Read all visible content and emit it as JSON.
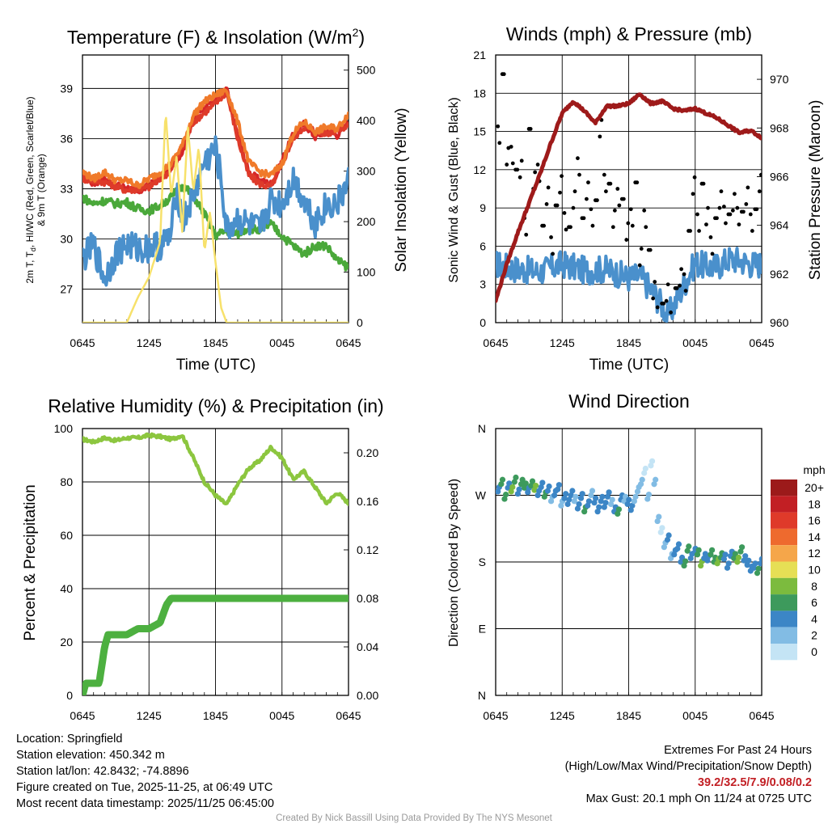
{
  "panels": {
    "temperature": {
      "title": "Temperature (F) & Insolation (W/m",
      "title_sup": "2",
      "title_close": ")",
      "ylabel_left_line1": "2m T, T",
      "ylabel_left_sub": "d",
      "ylabel_left_line1_rest": ", HI/WC (Red, Green, Scarlet/Blue)",
      "ylabel_left_line2": "& 9m T (Orange)",
      "ylabel_right": "Solar Insolation (Yellow)",
      "xlabel": "Time (UTC)"
    },
    "winds": {
      "title": "Winds (mph) & Pressure (mb)",
      "ylabel_left": "Sonic Wind & Gust (Blue, Black)",
      "ylabel_right": "Station Pressure (Maroon)",
      "xlabel": "Time (UTC)"
    },
    "humidity": {
      "title": "Relative Humidity (%) & Precipitation (in)",
      "ylabel_left": "Percent & Precipitation"
    },
    "direction": {
      "title": "Wind Direction",
      "ylabel_left": "Direction (Colored By Speed)",
      "legend_unit": "mph"
    }
  },
  "chart_data": [
    {
      "type": "line",
      "title": "Temperature (F) & Insolation (W/m2)",
      "xlabel": "Time (UTC)",
      "x_ticks": [
        "0645",
        "1245",
        "1845",
        "0045",
        "0645"
      ],
      "x_range_hours": [
        0,
        24
      ],
      "ylim": [
        25,
        41
      ],
      "y_ticks": [
        27,
        30,
        33,
        36,
        39
      ],
      "y2lim": [
        0,
        530
      ],
      "y2_ticks": [
        0,
        100,
        200,
        300,
        400,
        500
      ],
      "series": [
        {
          "name": "2m T",
          "color": "#d62728",
          "axis": "left",
          "x": [
            0,
            1,
            2,
            3,
            4,
            5,
            6,
            7,
            8,
            9,
            10,
            11,
            12,
            13,
            13.5,
            14,
            15,
            16,
            17,
            17.5,
            18,
            19,
            20,
            21,
            22,
            23,
            24
          ],
          "values": [
            33.8,
            33.3,
            33.6,
            33.2,
            33.1,
            32.8,
            33.2,
            33.6,
            34.3,
            35.2,
            37.2,
            38.0,
            38.3,
            39.0,
            37.5,
            36.2,
            34.0,
            33.5,
            33.3,
            33.8,
            34.7,
            36.2,
            36.9,
            36.1,
            36.5,
            36.2,
            37.0
          ]
        },
        {
          "name": "HI/WC",
          "color": "#de3a2a",
          "axis": "left",
          "x": [
            0,
            2,
            4,
            6,
            8,
            10,
            12,
            13,
            14,
            15,
            16,
            17,
            18,
            19,
            20,
            22,
            24
          ],
          "values": [
            33.6,
            33.4,
            32.9,
            33.1,
            34.1,
            37.0,
            38.1,
            38.8,
            36.0,
            33.8,
            33.3,
            33.1,
            34.5,
            36.0,
            36.7,
            36.3,
            36.8
          ]
        },
        {
          "name": "9m T",
          "color": "#f07a2a",
          "axis": "left",
          "x": [
            0,
            1,
            2,
            3,
            4,
            5,
            6,
            7,
            8,
            9,
            10,
            11,
            12,
            13,
            14,
            15,
            16,
            17,
            18,
            19,
            20,
            21,
            22,
            23,
            24
          ],
          "values": [
            34.0,
            33.6,
            34.0,
            33.5,
            33.5,
            33.2,
            33.6,
            34.0,
            34.5,
            35.6,
            37.4,
            38.2,
            38.6,
            38.9,
            37.0,
            34.6,
            34.0,
            33.8,
            34.5,
            36.3,
            37.0,
            36.4,
            36.7,
            36.6,
            37.5
          ]
        },
        {
          "name": "Td",
          "color": "#4aa83a",
          "axis": "left",
          "x": [
            0,
            1,
            2,
            3,
            4,
            5,
            6,
            7,
            8,
            9,
            10,
            11,
            12,
            13,
            14,
            15,
            16,
            17,
            18,
            19,
            20,
            21,
            22,
            23,
            24
          ],
          "values": [
            32.5,
            32.1,
            32.3,
            32.1,
            32.2,
            31.8,
            31.7,
            32.0,
            32.5,
            33.2,
            32.6,
            31.5,
            30.2,
            30.5,
            30.3,
            30.7,
            30.5,
            30.9,
            30.2,
            29.6,
            29.1,
            29.6,
            29.6,
            28.7,
            28.3
          ]
        },
        {
          "name": "Scarlet/Blue",
          "color": "#4a90cc",
          "axis": "left",
          "x": [
            0,
            1,
            2,
            3,
            4,
            5,
            6,
            7,
            8,
            8.5,
            9,
            10,
            11,
            12,
            12.5,
            13,
            14,
            15,
            16,
            17,
            18,
            19,
            20,
            21,
            22,
            23,
            24
          ],
          "values": [
            28.8,
            29.6,
            27.6,
            29.1,
            29.7,
            29.4,
            29.5,
            29.6,
            30.2,
            33.2,
            31.0,
            32.5,
            34.6,
            35.3,
            33.6,
            30.5,
            31.2,
            30.8,
            30.5,
            32.3,
            32.1,
            33.6,
            32.4,
            31.0,
            32.0,
            32.1,
            33.4
          ]
        },
        {
          "name": "Solar Insolation",
          "color": "#f7e16b",
          "axis": "right",
          "x": [
            0,
            4,
            5,
            6,
            7,
            7.5,
            8,
            8.5,
            9,
            9.5,
            10,
            10.5,
            11,
            11.5,
            12,
            12.5,
            13,
            13.5,
            14,
            24
          ],
          "values": [
            0,
            0,
            50,
            90,
            160,
            420,
            250,
            330,
            180,
            390,
            260,
            350,
            140,
            220,
            120,
            30,
            0,
            0,
            0,
            0
          ]
        }
      ]
    },
    {
      "type": "line",
      "title": "Winds (mph) & Pressure (mb)",
      "xlabel": "Time (UTC)",
      "x_ticks": [
        "0645",
        "1245",
        "1845",
        "0045",
        "0645"
      ],
      "x_range_hours": [
        0,
        24
      ],
      "ylim": [
        0,
        21
      ],
      "y_ticks": [
        0,
        3,
        6,
        9,
        12,
        15,
        18,
        21
      ],
      "y2lim": [
        960,
        971
      ],
      "y2_ticks": [
        960,
        962,
        964,
        966,
        968,
        970
      ],
      "series": [
        {
          "name": "Sonic Wind",
          "color": "#4a90cc",
          "axis": "left",
          "x": [
            0,
            2,
            4,
            6,
            8,
            10,
            12,
            13,
            14,
            15,
            15.5,
            16,
            17,
            18,
            19,
            20,
            21,
            22,
            23,
            24
          ],
          "values": [
            4.6,
            4.2,
            4.0,
            4.6,
            4.1,
            4.2,
            3.5,
            3.7,
            2.6,
            1.4,
            0.5,
            1.2,
            3.0,
            4.7,
            4.4,
            4.4,
            5.0,
            4.9,
            4.6,
            4.6
          ]
        },
        {
          "name": "Gust",
          "color": "#000000",
          "axis": "left",
          "style": "points",
          "x": [
            0.2,
            0.6,
            1,
            1.4,
            1.8,
            2.2,
            2.6,
            3.0,
            3.4,
            3.8,
            4.2,
            4.6,
            5.0,
            5.4,
            5.8,
            6.2,
            6.6,
            7.0,
            7.4,
            7.8,
            8.2,
            8.6,
            9.0,
            9.4,
            9.8,
            10.2,
            10.6,
            11.0,
            11.4,
            11.8,
            12.2,
            12.6,
            13.0,
            13.4,
            13.8,
            14.2,
            14.6,
            15.0,
            15.4,
            15.8,
            16.2,
            16.6,
            17.0,
            17.4,
            17.8,
            18.2,
            18.6,
            19.0,
            19.4,
            19.8,
            20.2,
            20.6,
            21.0,
            21.4,
            21.8,
            22.2,
            22.6,
            23.0,
            23.4,
            23.8
          ],
          "values": [
            15.4,
            19.5,
            12.4,
            13.8,
            12.0,
            11.4,
            8.2,
            15.2,
            10.5,
            12.4,
            7.6,
            9.3,
            6.7,
            9.2,
            10.2,
            8.6,
            7.5,
            9.0,
            12.9,
            8.2,
            9.7,
            8.9,
            9.6,
            14.6,
            11.6,
            10.9,
            7.5,
            10.5,
            9.7,
            6.5,
            8.9,
            11.0,
            4.5,
            8.8,
            5.7,
            1.9,
            1.2,
            1.5,
            1.7,
            0.8,
            2.7,
            2.9,
            3.8,
            7.2,
            10.1,
            8.5,
            10.9,
            7.7,
            6.7,
            8.2,
            9.0,
            9.1,
            8.5,
            8.8,
            9.0,
            8.7,
            9.3,
            8.5,
            8.9,
            10.3
          ]
        },
        {
          "name": "Station Pressure",
          "color": "#9e1a1a",
          "axis": "right",
          "x": [
            0,
            1,
            2,
            3,
            4,
            5,
            6,
            7,
            8,
            9,
            10,
            11,
            12,
            13,
            14,
            15,
            16,
            17,
            18,
            19,
            20,
            21,
            22,
            23,
            24
          ],
          "values": [
            960.9,
            962.4,
            963.7,
            964.9,
            966.1,
            967.4,
            968.6,
            969.1,
            968.7,
            968.2,
            968.9,
            968.9,
            969.0,
            969.4,
            969.0,
            969.1,
            968.8,
            968.7,
            968.8,
            968.6,
            968.4,
            968.1,
            967.8,
            967.9,
            967.6
          ]
        }
      ]
    },
    {
      "type": "line",
      "title": "Relative Humidity (%) & Precipitation (in)",
      "x_ticks": [
        "0645",
        "1245",
        "1845",
        "0045",
        "0645"
      ],
      "x_range_hours": [
        0,
        24
      ],
      "ylim": [
        0,
        100
      ],
      "y_ticks": [
        0,
        20,
        40,
        60,
        80,
        100
      ],
      "y2lim": [
        0,
        0.22
      ],
      "y2_ticks": [
        "0.00",
        "0.04",
        "0.08",
        "0.12",
        "0.16",
        "0.20"
      ],
      "series": [
        {
          "name": "Relative Humidity",
          "color": "#8cc63f",
          "axis": "left",
          "x": [
            0,
            1,
            2,
            3,
            4,
            5,
            6,
            7,
            8,
            9,
            10,
            11,
            12,
            13,
            14,
            15,
            16,
            17,
            18,
            19,
            20,
            21,
            22,
            23,
            24
          ],
          "values": [
            96,
            95,
            96.5,
            95.5,
            96.5,
            96.5,
            97.5,
            97,
            96,
            97.5,
            89,
            80,
            75,
            71.5,
            79,
            85,
            88,
            93,
            89,
            81,
            84,
            78,
            72,
            76,
            72
          ]
        },
        {
          "name": "Precipitation",
          "color": "#4db040",
          "axis": "right",
          "x": [
            0,
            0.3,
            0.5,
            1.5,
            2,
            2.3,
            3,
            4,
            5,
            6,
            7,
            7.6,
            8,
            9,
            24
          ],
          "values": [
            0,
            0.01,
            0.01,
            0.01,
            0.04,
            0.05,
            0.05,
            0.05,
            0.055,
            0.055,
            0.06,
            0.075,
            0.08,
            0.08,
            0.08
          ]
        }
      ]
    },
    {
      "type": "scatter",
      "title": "Wind Direction",
      "ylabel": "Direction (Colored By Speed)",
      "x_ticks": [
        "0645",
        "1245",
        "1845",
        "0045",
        "0645"
      ],
      "x_range_hours": [
        0,
        24
      ],
      "ylim": [
        0,
        360
      ],
      "y_ticks": [
        "N",
        "E",
        "S",
        "W",
        "N"
      ],
      "y_tick_values": [
        0,
        90,
        180,
        270,
        360
      ],
      "color_scale": {
        "unit": "mph",
        "labels": [
          "0",
          "2",
          "4",
          "6",
          "8",
          "10",
          "12",
          "14",
          "16",
          "18",
          "20+"
        ],
        "colors": [
          "#c4e4f5",
          "#82bce4",
          "#3c86c6",
          "#3d9a5c",
          "#7cbb3e",
          "#e6df55",
          "#f5a64a",
          "#ee6a2e",
          "#df3a2a",
          "#c21f24",
          "#9c1a1a"
        ]
      },
      "x": [
        0.2,
        0.5,
        0.8,
        1.1,
        1.4,
        1.7,
        2.0,
        2.3,
        2.6,
        2.9,
        3.2,
        3.5,
        3.8,
        4.1,
        4.4,
        4.7,
        5.0,
        5.3,
        5.6,
        5.9,
        6.2,
        6.5,
        6.8,
        7.1,
        7.4,
        7.7,
        8.0,
        8.3,
        8.6,
        8.9,
        9.2,
        9.5,
        9.8,
        10.1,
        10.4,
        10.7,
        11.0,
        11.3,
        11.6,
        11.9,
        12.2,
        12.5,
        12.8,
        13.1,
        13.4,
        13.7,
        14.0,
        14.3,
        14.6,
        14.9,
        15.2,
        15.5,
        15.8,
        16.1,
        16.4,
        16.7,
        17.0,
        17.3,
        17.6,
        17.9,
        18.2,
        18.5,
        18.8,
        19.1,
        19.4,
        19.7,
        20.0,
        20.3,
        20.6,
        20.9,
        21.2,
        21.5,
        21.8,
        22.1,
        22.4,
        22.7,
        23.0,
        23.3,
        23.6,
        23.9
      ],
      "y": [
        275,
        285,
        265,
        280,
        275,
        288,
        272,
        285,
        280,
        274,
        283,
        277,
        270,
        281,
        268,
        276,
        262,
        270,
        278,
        256,
        266,
        258,
        270,
        262,
        252,
        266,
        248,
        256,
        270,
        260,
        248,
        262,
        254,
        268,
        258,
        248,
        245,
        264,
        262,
        258,
        250,
        262,
        275,
        285,
        300,
        265,
        310,
        285,
        235,
        220,
        200,
        210,
        185,
        190,
        198,
        180,
        175,
        195,
        185,
        192,
        190,
        175,
        185,
        182,
        190,
        180,
        178,
        186,
        184,
        172,
        188,
        185,
        180,
        194,
        182,
        176,
        168,
        172,
        165,
        178
      ],
      "speed": [
        3,
        5,
        6,
        4,
        7,
        5,
        3,
        6,
        5,
        4,
        6,
        7,
        3,
        4,
        5,
        3,
        2,
        3,
        4,
        2,
        3,
        3,
        4,
        2,
        3,
        4,
        5,
        3,
        2,
        4,
        3,
        4,
        3,
        3,
        2,
        4,
        6,
        3,
        2,
        4,
        3,
        2,
        1,
        1,
        0,
        1,
        0,
        2,
        1,
        0,
        2,
        3,
        1,
        4,
        3,
        3,
        5,
        6,
        4,
        3,
        5,
        7,
        4,
        3,
        5,
        6,
        7,
        5,
        4,
        3,
        3,
        5,
        7,
        6,
        3,
        4,
        3,
        4,
        5,
        3
      ]
    }
  ],
  "footer": {
    "location": "Location: Springfield",
    "elevation": "Station elevation: 450.342 m",
    "latlon": "Station lat/lon: 42.8432; -74.8896",
    "created": "Figure created on Tue, 2025-11-25, at 06:49 UTC",
    "recent": "Most recent data timestamp: 2025/11/25 06:45:00",
    "extremes_title": "Extremes For Past 24 Hours",
    "extremes_fields": "(High/Low/Max Wind/Precipitation/Snow Depth)",
    "extremes_values": "39.2/32.5/7.9/0.08/0.2",
    "max_gust": "Max Gust: 20.1 mph On 11/24 at 0725 UTC",
    "credit": "Created By Nick Bassill Using Data Provided By The NYS Mesonet"
  }
}
